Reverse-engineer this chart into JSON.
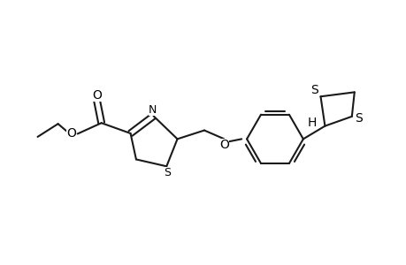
{
  "background_color": "#ffffff",
  "line_color": "#1a1a1a",
  "line_width": 1.5,
  "font_size": 10,
  "figsize": [
    4.6,
    3.0
  ],
  "dpi": 100,
  "xlim": [
    0,
    9
  ],
  "ylim": [
    0,
    6
  ]
}
